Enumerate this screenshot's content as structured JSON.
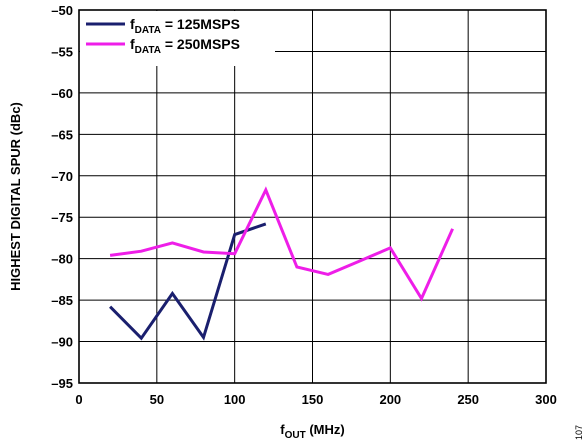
{
  "chart_data": {
    "type": "line",
    "ylabel": "HIGHEST DIGITAL SPUR (dBc)",
    "xlabel": {
      "main": "f",
      "sub": "OUT",
      "unit": " (MHz)"
    },
    "xlim": [
      0,
      300
    ],
    "ylim": [
      -95,
      -50
    ],
    "xticks": [
      "0",
      "50",
      "100",
      "150",
      "200",
      "250",
      "300"
    ],
    "yticks": [
      "–50",
      "–55",
      "–60",
      "–65",
      "–70",
      "–75",
      "–80",
      "–85",
      "–90",
      "–95"
    ],
    "grid": true,
    "legend_position": "top-left",
    "series": [
      {
        "name": {
          "main": "f",
          "sub": "DATA",
          "rest": " = 125MSPS"
        },
        "color": "#1a1f6e",
        "points": [
          [
            20,
            -85.8
          ],
          [
            40,
            -89.6
          ],
          [
            60,
            -84.2
          ],
          [
            80,
            -89.5
          ],
          [
            100,
            -77.1
          ],
          [
            120,
            -75.8
          ]
        ]
      },
      {
        "name": {
          "main": "f",
          "sub": "DATA",
          "rest": " = 250MSPS"
        },
        "color": "#ee1ee8",
        "points": [
          [
            20,
            -79.6
          ],
          [
            40,
            -79.1
          ],
          [
            60,
            -78.1
          ],
          [
            80,
            -79.2
          ],
          [
            100,
            -79.4
          ],
          [
            120,
            -71.7
          ],
          [
            140,
            -81.0
          ],
          [
            160,
            -81.9
          ],
          [
            180,
            -80.3
          ],
          [
            200,
            -78.7
          ],
          [
            220,
            -84.8
          ],
          [
            240,
            -76.4
          ]
        ]
      }
    ]
  },
  "figure_id": "107"
}
